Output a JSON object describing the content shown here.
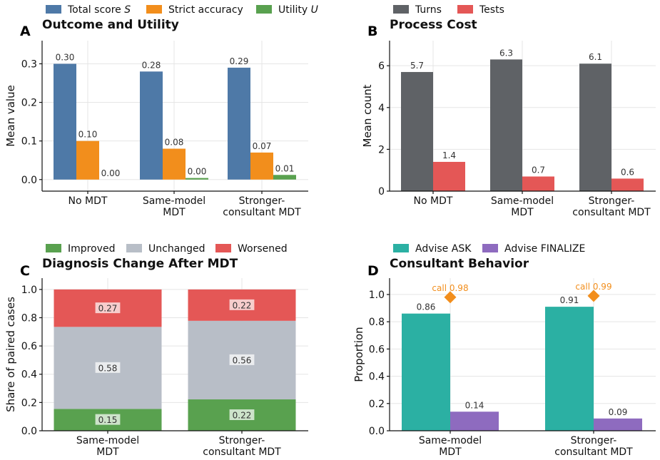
{
  "chart_data": [
    {
      "type": "bar",
      "panel": "A",
      "title": "Outcome and Utility",
      "ylabel": "Mean value",
      "xlabel": "",
      "ylim": [
        -0.03,
        0.36
      ],
      "yticks": [
        "0.0",
        "0.1",
        "0.2",
        "0.3"
      ],
      "ytick_values": [
        0,
        0.1,
        0.2,
        0.3
      ],
      "categories": [
        "No MDT",
        "Same-model\nMDT",
        "Stronger-\nconsultant MDT"
      ],
      "series": [
        {
          "name": "Total score",
          "name_italic": "S",
          "color": "#4e79a7",
          "values": [
            0.3,
            0.28,
            0.29
          ],
          "labels": [
            "0.30",
            "0.28",
            "0.29"
          ]
        },
        {
          "name": "Strict accuracy",
          "color": "#f28e1c",
          "values": [
            0.1,
            0.08,
            0.07
          ],
          "labels": [
            "0.10",
            "0.08",
            "0.07"
          ]
        },
        {
          "name": "Utility",
          "name_italic": "U",
          "color": "#59a14f",
          "values": [
            0.0,
            0.004,
            0.012
          ],
          "labels": [
            "0.00",
            "0.00",
            "0.01"
          ]
        }
      ],
      "grid": true,
      "legend": "top"
    },
    {
      "type": "bar",
      "panel": "B",
      "title": "Process Cost",
      "ylabel": "Mean count",
      "xlabel": "",
      "ylim": [
        0,
        7.2
      ],
      "yticks": [
        "0",
        "2",
        "4",
        "6"
      ],
      "ytick_values": [
        0,
        2,
        4,
        6
      ],
      "categories": [
        "No MDT",
        "Same-model\nMDT",
        "Stronger-\nconsultant MDT"
      ],
      "series": [
        {
          "name": "Turns",
          "color": "#5f6266",
          "values": [
            5.7,
            6.3,
            6.1
          ],
          "labels": [
            "5.7",
            "6.3",
            "6.1"
          ]
        },
        {
          "name": "Tests",
          "color": "#e45756",
          "values": [
            1.4,
            0.7,
            0.6
          ],
          "labels": [
            "1.4",
            "0.7",
            "0.6"
          ]
        }
      ],
      "grid": true,
      "legend": "top"
    },
    {
      "type": "bar",
      "stacked": true,
      "panel": "C",
      "title": "Diagnosis Change After MDT",
      "ylabel": "Share of paired cases",
      "xlabel": "",
      "ylim": [
        0,
        1.08
      ],
      "yticks": [
        "0.0",
        "0.2",
        "0.4",
        "0.6",
        "0.8",
        "1.0"
      ],
      "ytick_values": [
        0,
        0.2,
        0.4,
        0.6,
        0.8,
        1.0
      ],
      "categories": [
        "Same-model\nMDT",
        "Stronger-\nconsultant MDT"
      ],
      "series": [
        {
          "name": "Improved",
          "color": "#59a14f",
          "values": [
            0.155,
            0.222
          ],
          "labels": [
            "0.15",
            "0.22"
          ]
        },
        {
          "name": "Unchanged",
          "color": "#b8bec7",
          "values": [
            0.58,
            0.556
          ],
          "labels": [
            "0.58",
            "0.56"
          ]
        },
        {
          "name": "Worsened",
          "color": "#e45756",
          "values": [
            0.265,
            0.222
          ],
          "labels": [
            "0.27",
            "0.22"
          ]
        }
      ],
      "grid": true,
      "legend": "top"
    },
    {
      "type": "bar",
      "panel": "D",
      "title": "Consultant Behavior",
      "ylabel": "Proportion",
      "xlabel": "",
      "ylim": [
        0,
        1.12
      ],
      "yticks": [
        "0.0",
        "0.2",
        "0.4",
        "0.6",
        "0.8",
        "1.0"
      ],
      "ytick_values": [
        0,
        0.2,
        0.4,
        0.6,
        0.8,
        1.0
      ],
      "categories": [
        "Same-model\nMDT",
        "Stronger-\nconsultant MDT"
      ],
      "series": [
        {
          "name": "Advise ASK",
          "color": "#2bb0a3",
          "values": [
            0.86,
            0.91
          ],
          "labels": [
            "0.86",
            "0.91"
          ]
        },
        {
          "name": "Advise FINALIZE",
          "color": "#8e6bbf",
          "values": [
            0.14,
            0.09
          ],
          "labels": [
            "0.14",
            "0.09"
          ]
        }
      ],
      "annotations": [
        {
          "text": "call 0.98",
          "value": 0.98,
          "color": "#f28e1c"
        },
        {
          "text": "call 0.99",
          "value": 0.99,
          "color": "#f28e1c"
        }
      ],
      "grid": true,
      "legend": "top"
    }
  ]
}
